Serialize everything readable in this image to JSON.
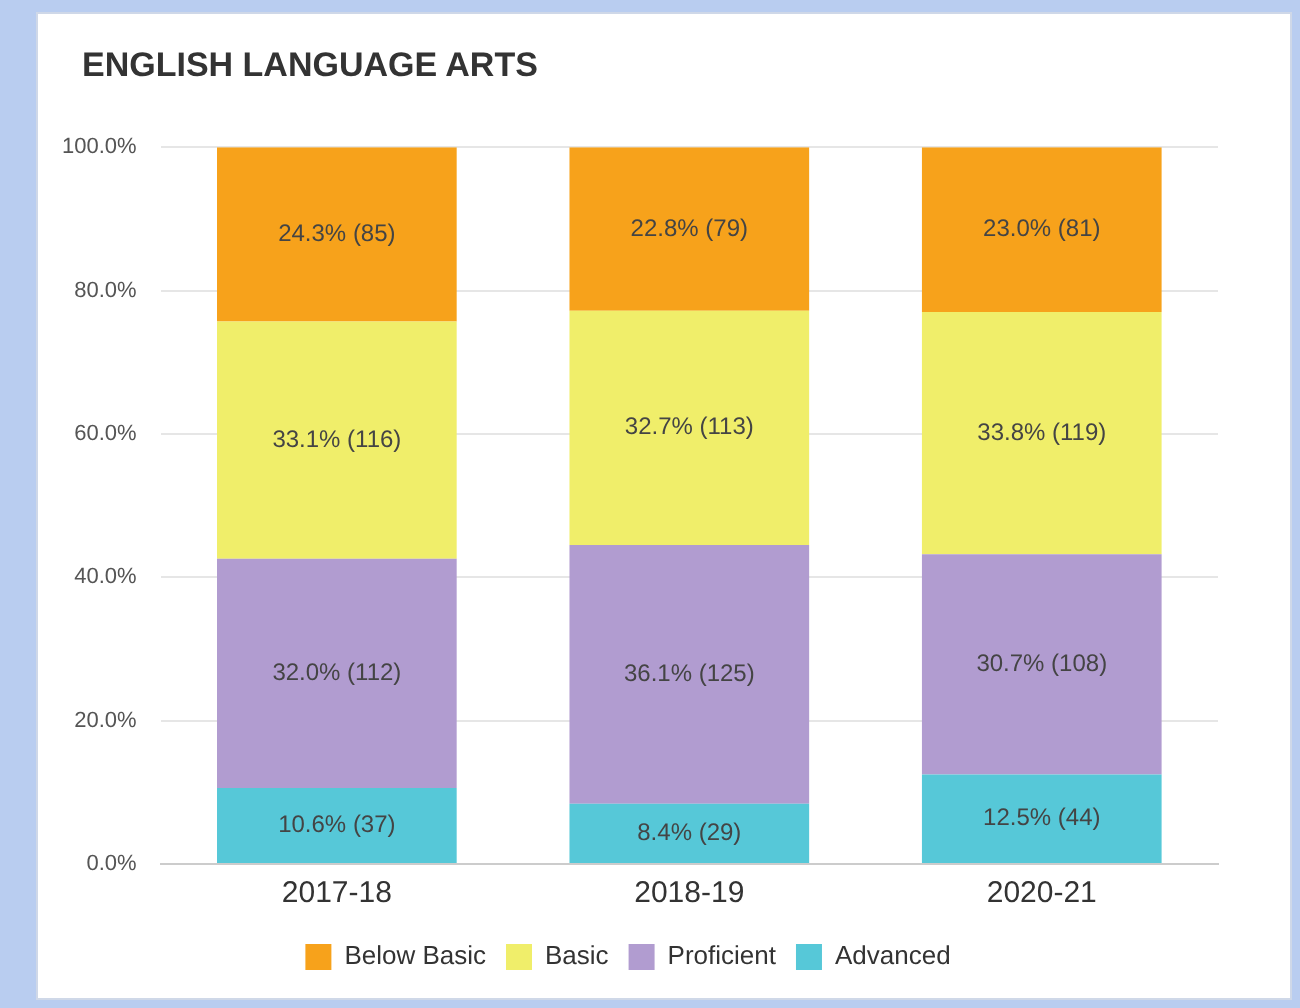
{
  "chart_data": {
    "type": "bar",
    "title": "ENGLISH LANGUAGE ARTS",
    "stacked": true,
    "categories": [
      "2017-18",
      "2018-19",
      "2020-21"
    ],
    "series": [
      {
        "name": "Advanced",
        "color": "#56c8d8",
        "values": [
          10.6,
          8.4,
          12.5
        ],
        "value_labels": [
          "10.6% (37)",
          "8.4% (29)",
          "12.5% (44)"
        ]
      },
      {
        "name": "Proficient",
        "color": "#b19cd0",
        "values": [
          32.0,
          36.1,
          30.7
        ],
        "value_labels": [
          "32.0% (112)",
          "36.1% (125)",
          "30.7% (108)"
        ]
      },
      {
        "name": "Basic",
        "color": "#f0ee6a",
        "values": [
          33.1,
          32.7,
          33.8
        ],
        "value_labels": [
          "33.1% (116)",
          "32.7% (113)",
          "33.8% (119)"
        ]
      },
      {
        "name": "Below Basic",
        "color": "#f7a21b",
        "values": [
          24.3,
          22.8,
          23.0
        ],
        "value_labels": [
          "24.3% (85)",
          "22.8% (79)",
          "23.0% (81)"
        ]
      }
    ],
    "ylim": [
      0,
      100
    ],
    "yticks": [
      {
        "value": 0,
        "label": "0.0%"
      },
      {
        "value": 20,
        "label": "20.0%"
      },
      {
        "value": 40,
        "label": "40.0%"
      },
      {
        "value": 60,
        "label": "60.0%"
      },
      {
        "value": 80,
        "label": "80.0%"
      },
      {
        "value": 100,
        "label": "100.0%"
      }
    ],
    "grid": "y",
    "legend": "bottom"
  }
}
